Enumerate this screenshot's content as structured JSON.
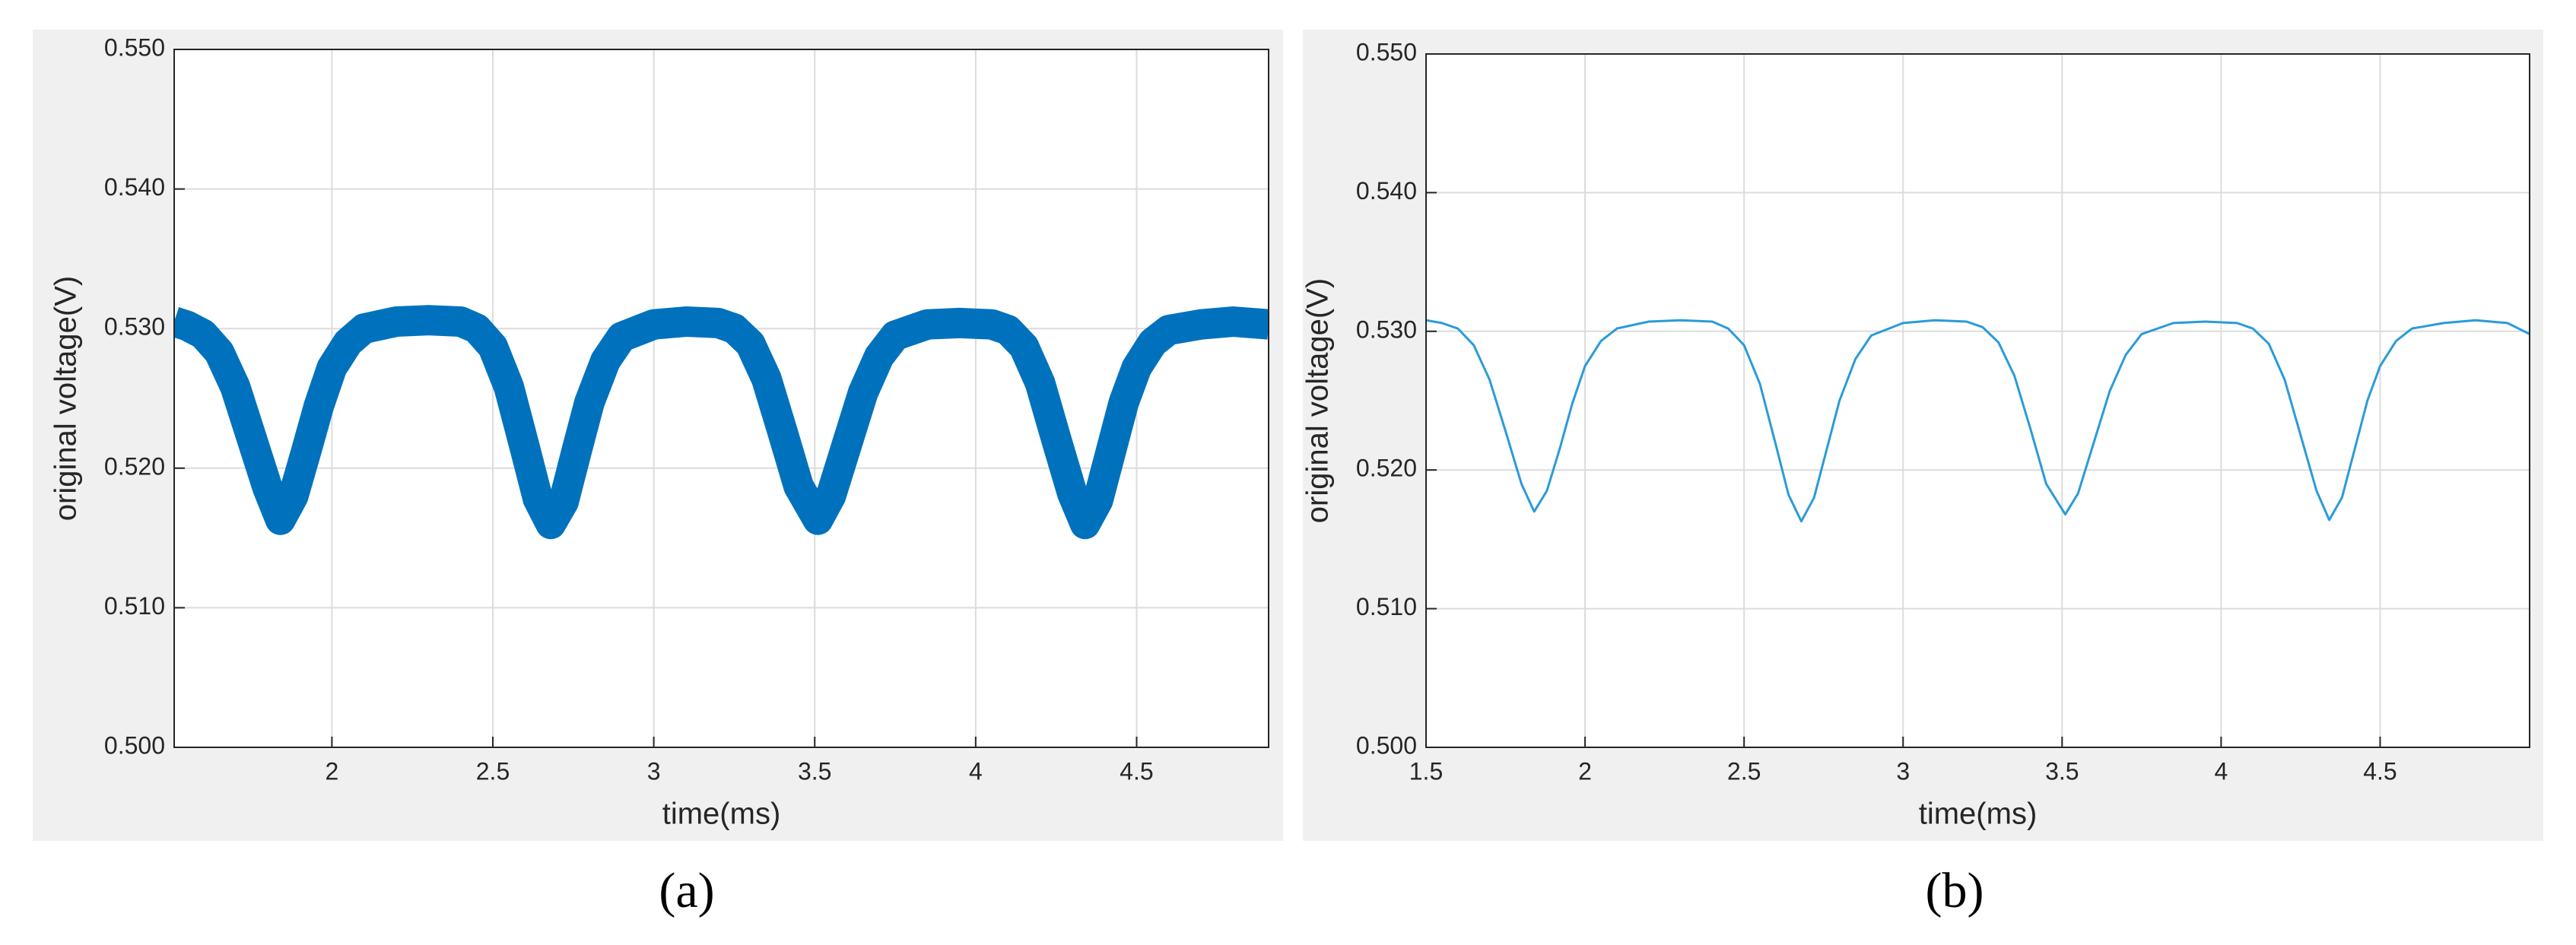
{
  "chart_data": [
    {
      "type": "line",
      "caption": "(a)",
      "x_label": "time(ms)",
      "y_label": "original voltage(V)",
      "color": "#0072bd",
      "grid": true,
      "xlim": [
        1.51,
        4.91
      ],
      "ylim": [
        0.5,
        0.55
      ],
      "xticks": [
        2,
        2.5,
        3,
        3.5,
        4,
        4.5
      ],
      "yticks": [
        {
          "value": 0.5,
          "label": "0.500"
        },
        {
          "value": 0.51,
          "label": "0.510"
        },
        {
          "value": 0.52,
          "label": "0.520"
        },
        {
          "value": 0.53,
          "label": "0.530"
        },
        {
          "value": 0.54,
          "label": "0.540"
        },
        {
          "value": 0.55,
          "label": "0.550"
        }
      ],
      "x": [
        1.51,
        1.55,
        1.6,
        1.65,
        1.7,
        1.75,
        1.8,
        1.84,
        1.88,
        1.92,
        1.96,
        2.0,
        2.05,
        2.1,
        2.2,
        2.3,
        2.4,
        2.45,
        2.5,
        2.55,
        2.6,
        2.64,
        2.68,
        2.72,
        2.76,
        2.8,
        2.85,
        2.9,
        3.0,
        3.1,
        3.2,
        3.25,
        3.3,
        3.35,
        3.4,
        3.45,
        3.51,
        3.55,
        3.6,
        3.65,
        3.7,
        3.75,
        3.85,
        3.95,
        4.05,
        4.1,
        4.15,
        4.2,
        4.25,
        4.3,
        4.34,
        4.38,
        4.42,
        4.46,
        4.5,
        4.55,
        4.6,
        4.7,
        4.8,
        4.91
      ],
      "values": [
        0.5305,
        0.5302,
        0.5296,
        0.5283,
        0.5258,
        0.5222,
        0.5186,
        0.5163,
        0.518,
        0.5212,
        0.5245,
        0.5272,
        0.529,
        0.53,
        0.5305,
        0.5306,
        0.5305,
        0.53,
        0.5287,
        0.5258,
        0.5214,
        0.5178,
        0.516,
        0.5176,
        0.5212,
        0.5247,
        0.5277,
        0.5294,
        0.5303,
        0.5305,
        0.5304,
        0.53,
        0.5289,
        0.5264,
        0.5226,
        0.5187,
        0.5163,
        0.518,
        0.5217,
        0.5254,
        0.528,
        0.5295,
        0.5303,
        0.5304,
        0.5303,
        0.5299,
        0.5287,
        0.5261,
        0.5221,
        0.5182,
        0.516,
        0.5177,
        0.5212,
        0.5247,
        0.5272,
        0.529,
        0.5299,
        0.5303,
        0.5305,
        0.5303
      ]
    },
    {
      "type": "line",
      "caption": "(b)",
      "x_label": "time(ms)",
      "y_label": "original voltage(V)",
      "color": "#2b9bd8",
      "grid": true,
      "xlim": [
        1.5,
        4.97
      ],
      "ylim": [
        0.5,
        0.55
      ],
      "xticks": [
        1.5,
        2,
        2.5,
        3,
        3.5,
        4,
        4.5
      ],
      "yticks": [
        {
          "value": 0.5,
          "label": "0.500"
        },
        {
          "value": 0.51,
          "label": "0.510"
        },
        {
          "value": 0.52,
          "label": "0.520"
        },
        {
          "value": 0.53,
          "label": "0.530"
        },
        {
          "value": 0.54,
          "label": "0.540"
        },
        {
          "value": 0.55,
          "label": "0.550"
        }
      ],
      "x": [
        1.5,
        1.55,
        1.6,
        1.65,
        1.7,
        1.75,
        1.8,
        1.84,
        1.88,
        1.92,
        1.96,
        2.0,
        2.05,
        2.1,
        2.2,
        2.3,
        2.4,
        2.45,
        2.5,
        2.55,
        2.6,
        2.64,
        2.68,
        2.72,
        2.76,
        2.8,
        2.85,
        2.9,
        3.0,
        3.1,
        3.2,
        3.25,
        3.3,
        3.35,
        3.4,
        3.45,
        3.51,
        3.55,
        3.6,
        3.65,
        3.7,
        3.75,
        3.85,
        3.95,
        4.05,
        4.1,
        4.15,
        4.2,
        4.25,
        4.3,
        4.34,
        4.38,
        4.42,
        4.46,
        4.5,
        4.55,
        4.6,
        4.7,
        4.8,
        4.9,
        4.97
      ],
      "values": [
        0.5308,
        0.5306,
        0.5302,
        0.529,
        0.5265,
        0.5228,
        0.519,
        0.517,
        0.5185,
        0.5215,
        0.5248,
        0.5275,
        0.5293,
        0.5302,
        0.5307,
        0.5308,
        0.5307,
        0.5302,
        0.529,
        0.5262,
        0.5218,
        0.5182,
        0.5163,
        0.518,
        0.5215,
        0.525,
        0.528,
        0.5297,
        0.5306,
        0.5308,
        0.5307,
        0.5303,
        0.5292,
        0.5268,
        0.523,
        0.519,
        0.5168,
        0.5183,
        0.522,
        0.5257,
        0.5283,
        0.5298,
        0.5306,
        0.5307,
        0.5306,
        0.5302,
        0.5291,
        0.5265,
        0.5225,
        0.5185,
        0.5164,
        0.518,
        0.5215,
        0.525,
        0.5275,
        0.5293,
        0.5302,
        0.5306,
        0.5308,
        0.5306,
        0.5298
      ]
    }
  ]
}
